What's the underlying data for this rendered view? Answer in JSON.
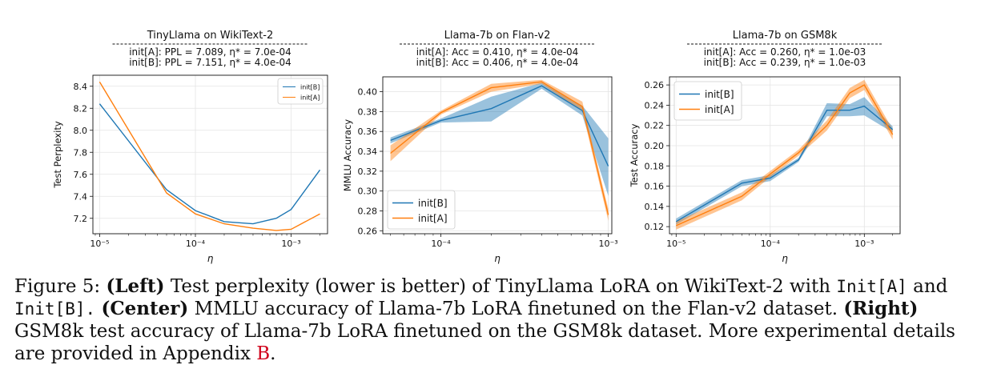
{
  "caption": {
    "label": "Figure 5:",
    "left_bold": "(Left)",
    "left_text": "Test perplexity (lower is better) of TinyLlama LoRA on WikiText-2 with",
    "code_a": "Init[A]",
    "and": "and",
    "code_b": "Init[B].",
    "center_bold": "(Center)",
    "center_text": "MMLU accuracy of Llama-7b LoRA finetuned on the Flan-v2 dataset.",
    "right_bold": "(Right)",
    "right_text": "GSM8k test accuracy of Llama-7b LoRA finetuned on the GSM8k dataset. More experimental details are provided in Appendix",
    "appendix_ref": "B",
    "end": "."
  },
  "chart_data": [
    {
      "type": "line",
      "title": "TinyLlama on WikiText-2",
      "subtitle": [
        "init[A]: PPL = 7.089, η* = 7.0e-04",
        "init[B]: PPL = 7.151, η* = 4.0e-04"
      ],
      "xlabel": "η",
      "ylabel": "Test Perplexity",
      "xscale": "log",
      "xlim": [
        8.5e-06,
        0.0024
      ],
      "ylim": [
        7.06,
        8.5
      ],
      "xticks": [
        {
          "v": 1e-05,
          "label": "10⁻⁵"
        },
        {
          "v": 0.0001,
          "label": "10⁻⁴"
        },
        {
          "v": 0.001,
          "label": "10⁻³"
        }
      ],
      "yticks": [
        {
          "v": 7.2,
          "label": "7.2"
        },
        {
          "v": 7.4,
          "label": "7.4"
        },
        {
          "v": 7.6,
          "label": "7.6"
        },
        {
          "v": 7.8,
          "label": "7.8"
        },
        {
          "v": 8.0,
          "label": "8.0"
        },
        {
          "v": 8.2,
          "label": "8.2"
        },
        {
          "v": 8.4,
          "label": "8.4"
        }
      ],
      "grid": true,
      "legend": "top-right",
      "legend_size": "small",
      "series": [
        {
          "name": "init[B]",
          "color": "#1f77b4",
          "x": [
            1e-05,
            5e-05,
            0.0001,
            0.0002,
            0.0004,
            0.0007,
            0.001,
            0.002
          ],
          "y": [
            8.24,
            7.46,
            7.27,
            7.17,
            7.15,
            7.2,
            7.28,
            7.64
          ]
        },
        {
          "name": "init[A]",
          "color": "#ff7f0e",
          "x": [
            1e-05,
            5e-05,
            0.0001,
            0.0002,
            0.0004,
            0.0007,
            0.001,
            0.002
          ],
          "y": [
            8.44,
            7.43,
            7.24,
            7.15,
            7.11,
            7.09,
            7.1,
            7.24
          ]
        }
      ]
    },
    {
      "type": "line",
      "title": "Llama-7b on Flan-v2",
      "subtitle": [
        "init[A]: Acc = 0.410, η* = 4.0e-04",
        "init[B]: Acc = 0.406, η* = 4.0e-04"
      ],
      "xlabel": "η",
      "ylabel": "MMLU Accuracy",
      "xscale": "log",
      "xlim": [
        4.5e-05,
        0.00105
      ],
      "ylim": [
        0.257,
        0.415
      ],
      "xticks": [
        {
          "v": 0.0001,
          "label": "10⁻⁴"
        },
        {
          "v": 0.001,
          "label": "10⁻³"
        }
      ],
      "yticks": [
        {
          "v": 0.26,
          "label": "0.26"
        },
        {
          "v": 0.28,
          "label": "0.28"
        },
        {
          "v": 0.3,
          "label": "0.30"
        },
        {
          "v": 0.32,
          "label": "0.32"
        },
        {
          "v": 0.34,
          "label": "0.34"
        },
        {
          "v": 0.36,
          "label": "0.36"
        },
        {
          "v": 0.38,
          "label": "0.38"
        },
        {
          "v": 0.4,
          "label": "0.40"
        }
      ],
      "grid": true,
      "legend": "bottom-left",
      "legend_size": "large",
      "series": [
        {
          "name": "init[B]",
          "color": "#1f77b4",
          "x": [
            5e-05,
            0.0001,
            0.0002,
            0.0004,
            0.0007,
            0.001
          ],
          "y": [
            0.351,
            0.371,
            0.383,
            0.406,
            0.381,
            0.325
          ],
          "lo": [
            0.348,
            0.369,
            0.37,
            0.403,
            0.376,
            0.295
          ],
          "hi": [
            0.354,
            0.373,
            0.395,
            0.409,
            0.386,
            0.353
          ]
        },
        {
          "name": "init[A]",
          "color": "#ff7f0e",
          "x": [
            5e-05,
            0.0001,
            0.0002,
            0.0004,
            0.0007,
            0.001
          ],
          "y": [
            0.338,
            0.379,
            0.404,
            0.41,
            0.385,
            0.276
          ],
          "lo": [
            0.33,
            0.377,
            0.4,
            0.408,
            0.38,
            0.27
          ],
          "hi": [
            0.346,
            0.381,
            0.408,
            0.412,
            0.39,
            0.282
          ]
        }
      ]
    },
    {
      "type": "line",
      "title": "Llama-7b on GSM8k",
      "subtitle": [
        "init[A]: Acc = 0.260, η* = 1.0e-03",
        "init[B]: Acc = 0.239, η* = 1.0e-03"
      ],
      "xlabel": "η",
      "ylabel": "Test Accuracy",
      "xscale": "log",
      "xlim": [
        8.5e-06,
        0.0024
      ],
      "ylim": [
        0.113,
        0.268
      ],
      "xticks": [
        {
          "v": 1e-05,
          "label": "10⁻⁵"
        },
        {
          "v": 0.0001,
          "label": "10⁻⁴"
        },
        {
          "v": 0.001,
          "label": "10⁻³"
        }
      ],
      "yticks": [
        {
          "v": 0.12,
          "label": "0.12"
        },
        {
          "v": 0.14,
          "label": "0.14"
        },
        {
          "v": 0.16,
          "label": "0.16"
        },
        {
          "v": 0.18,
          "label": "0.18"
        },
        {
          "v": 0.2,
          "label": "0.20"
        },
        {
          "v": 0.22,
          "label": "0.22"
        },
        {
          "v": 0.24,
          "label": "0.24"
        },
        {
          "v": 0.26,
          "label": "0.26"
        }
      ],
      "grid": true,
      "legend": "top-left",
      "legend_size": "large",
      "series": [
        {
          "name": "init[B]",
          "color": "#1f77b4",
          "x": [
            1e-05,
            5e-05,
            0.0001,
            0.0002,
            0.0004,
            0.0007,
            0.001,
            0.002
          ],
          "y": [
            0.125,
            0.163,
            0.168,
            0.186,
            0.235,
            0.235,
            0.239,
            0.216
          ],
          "lo": [
            0.122,
            0.16,
            0.165,
            0.184,
            0.229,
            0.229,
            0.23,
            0.213
          ],
          "hi": [
            0.128,
            0.166,
            0.171,
            0.188,
            0.242,
            0.241,
            0.248,
            0.219
          ]
        },
        {
          "name": "init[A]",
          "color": "#ff7f0e",
          "x": [
            1e-05,
            5e-05,
            0.0001,
            0.0002,
            0.0004,
            0.0007,
            0.001,
            0.002
          ],
          "y": [
            0.121,
            0.15,
            0.172,
            0.193,
            0.22,
            0.252,
            0.26,
            0.211
          ],
          "lo": [
            0.117,
            0.146,
            0.169,
            0.19,
            0.215,
            0.247,
            0.255,
            0.206
          ],
          "hi": [
            0.125,
            0.154,
            0.175,
            0.196,
            0.225,
            0.257,
            0.265,
            0.216
          ]
        }
      ]
    }
  ]
}
